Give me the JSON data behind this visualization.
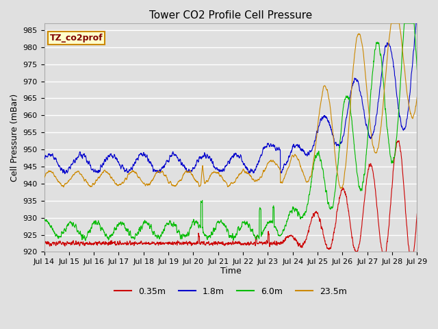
{
  "title": "Tower CO2 Profile Cell Pressure",
  "ylabel": "Cell Pressure (mBar)",
  "xlabel": "Time",
  "tag_label": "TZ_co2prof",
  "ylim": [
    920,
    987
  ],
  "yticks": [
    920,
    925,
    930,
    935,
    940,
    945,
    950,
    955,
    960,
    965,
    970,
    975,
    980,
    985
  ],
  "x_tick_labels": [
    "Jul 14",
    "Jul 15",
    "Jul 16",
    "Jul 17",
    "Jul 18",
    "Jul 19",
    "Jul 20",
    "Jul 21",
    "Jul 22",
    "Jul 23",
    "Jul 24",
    "Jul 25",
    "Jul 26",
    "Jul 27",
    "Jul 28",
    "Jul 29"
  ],
  "background_color": "#e0e0e0",
  "plot_bg_color": "#e0e0e0",
  "grid_color": "#ffffff",
  "n_days": 15,
  "pts_per_day": 144,
  "legend_labels": [
    "0.35m",
    "1.8m",
    "6.0m",
    "23.5m"
  ],
  "legend_colors": [
    "#cc0000",
    "#0000cc",
    "#00bb00",
    "#cc8800"
  ],
  "tag_color": "#800000",
  "tag_bg": "#ffffcc",
  "tag_edge": "#cc8800"
}
